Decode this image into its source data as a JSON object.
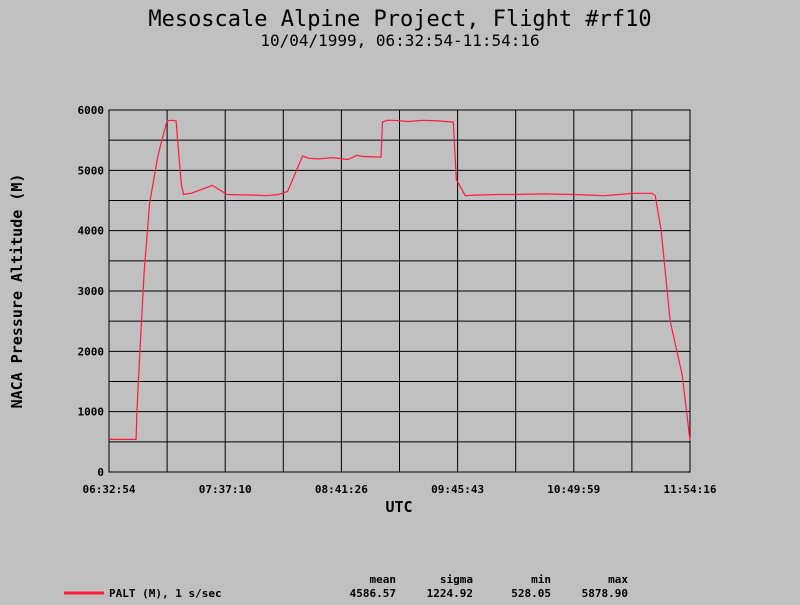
{
  "chart_data": {
    "type": "line",
    "title": "Mesoscale Alpine Project, Flight #rf10",
    "subtitle": "10/04/1999, 06:32:54-11:54:16",
    "xlabel": "UTC",
    "ylabel": "NACA Pressure Altitude (M)",
    "x_ticks": [
      "06:32:54",
      "07:37:10",
      "08:41:26",
      "09:45:43",
      "10:49:59",
      "11:54:16"
    ],
    "y_ticks": [
      "0",
      "1000",
      "2000",
      "3000",
      "4000",
      "5000",
      "6000"
    ],
    "ylim": [
      0,
      6000
    ],
    "xlim_seconds": [
      23574,
      42856
    ],
    "grid": true,
    "series": [
      {
        "name": "PALT (M), 1 s/sec",
        "color": "#ff1a40",
        "x": [
          23574,
          24474,
          24500,
          24600,
          24740,
          24920,
          25200,
          25500,
          25650,
          25800,
          25900,
          25980,
          26050,
          26150,
          26300,
          27000,
          27500,
          28400,
          28800,
          29200,
          29500,
          30000,
          30200,
          30500,
          31000,
          31500,
          31800,
          32000,
          32600,
          32650,
          32800,
          33000,
          33500,
          34000,
          34500,
          35000,
          35100,
          35400,
          35700,
          36500,
          37000,
          38000,
          39000,
          40000,
          40500,
          41000,
          41600,
          41700,
          41900,
          42200,
          42600,
          42856
        ],
        "y": [
          540,
          540,
          1000,
          2000,
          3300,
          4450,
          5250,
          5820,
          5830,
          5820,
          5200,
          4750,
          4600,
          4610,
          4620,
          4750,
          4600,
          4590,
          4580,
          4600,
          4650,
          5240,
          5200,
          5190,
          5210,
          5180,
          5250,
          5230,
          5220,
          5800,
          5830,
          5830,
          5810,
          5830,
          5820,
          5800,
          4850,
          4580,
          4590,
          4600,
          4600,
          4610,
          4600,
          4580,
          4600,
          4620,
          4620,
          4580,
          4000,
          2500,
          1600,
          520
        ]
      }
    ],
    "stats": {
      "headers": [
        "mean",
        "sigma",
        "min",
        "max"
      ],
      "values": [
        "4586.57",
        "1224.92",
        "528.05",
        "5878.90"
      ]
    }
  }
}
